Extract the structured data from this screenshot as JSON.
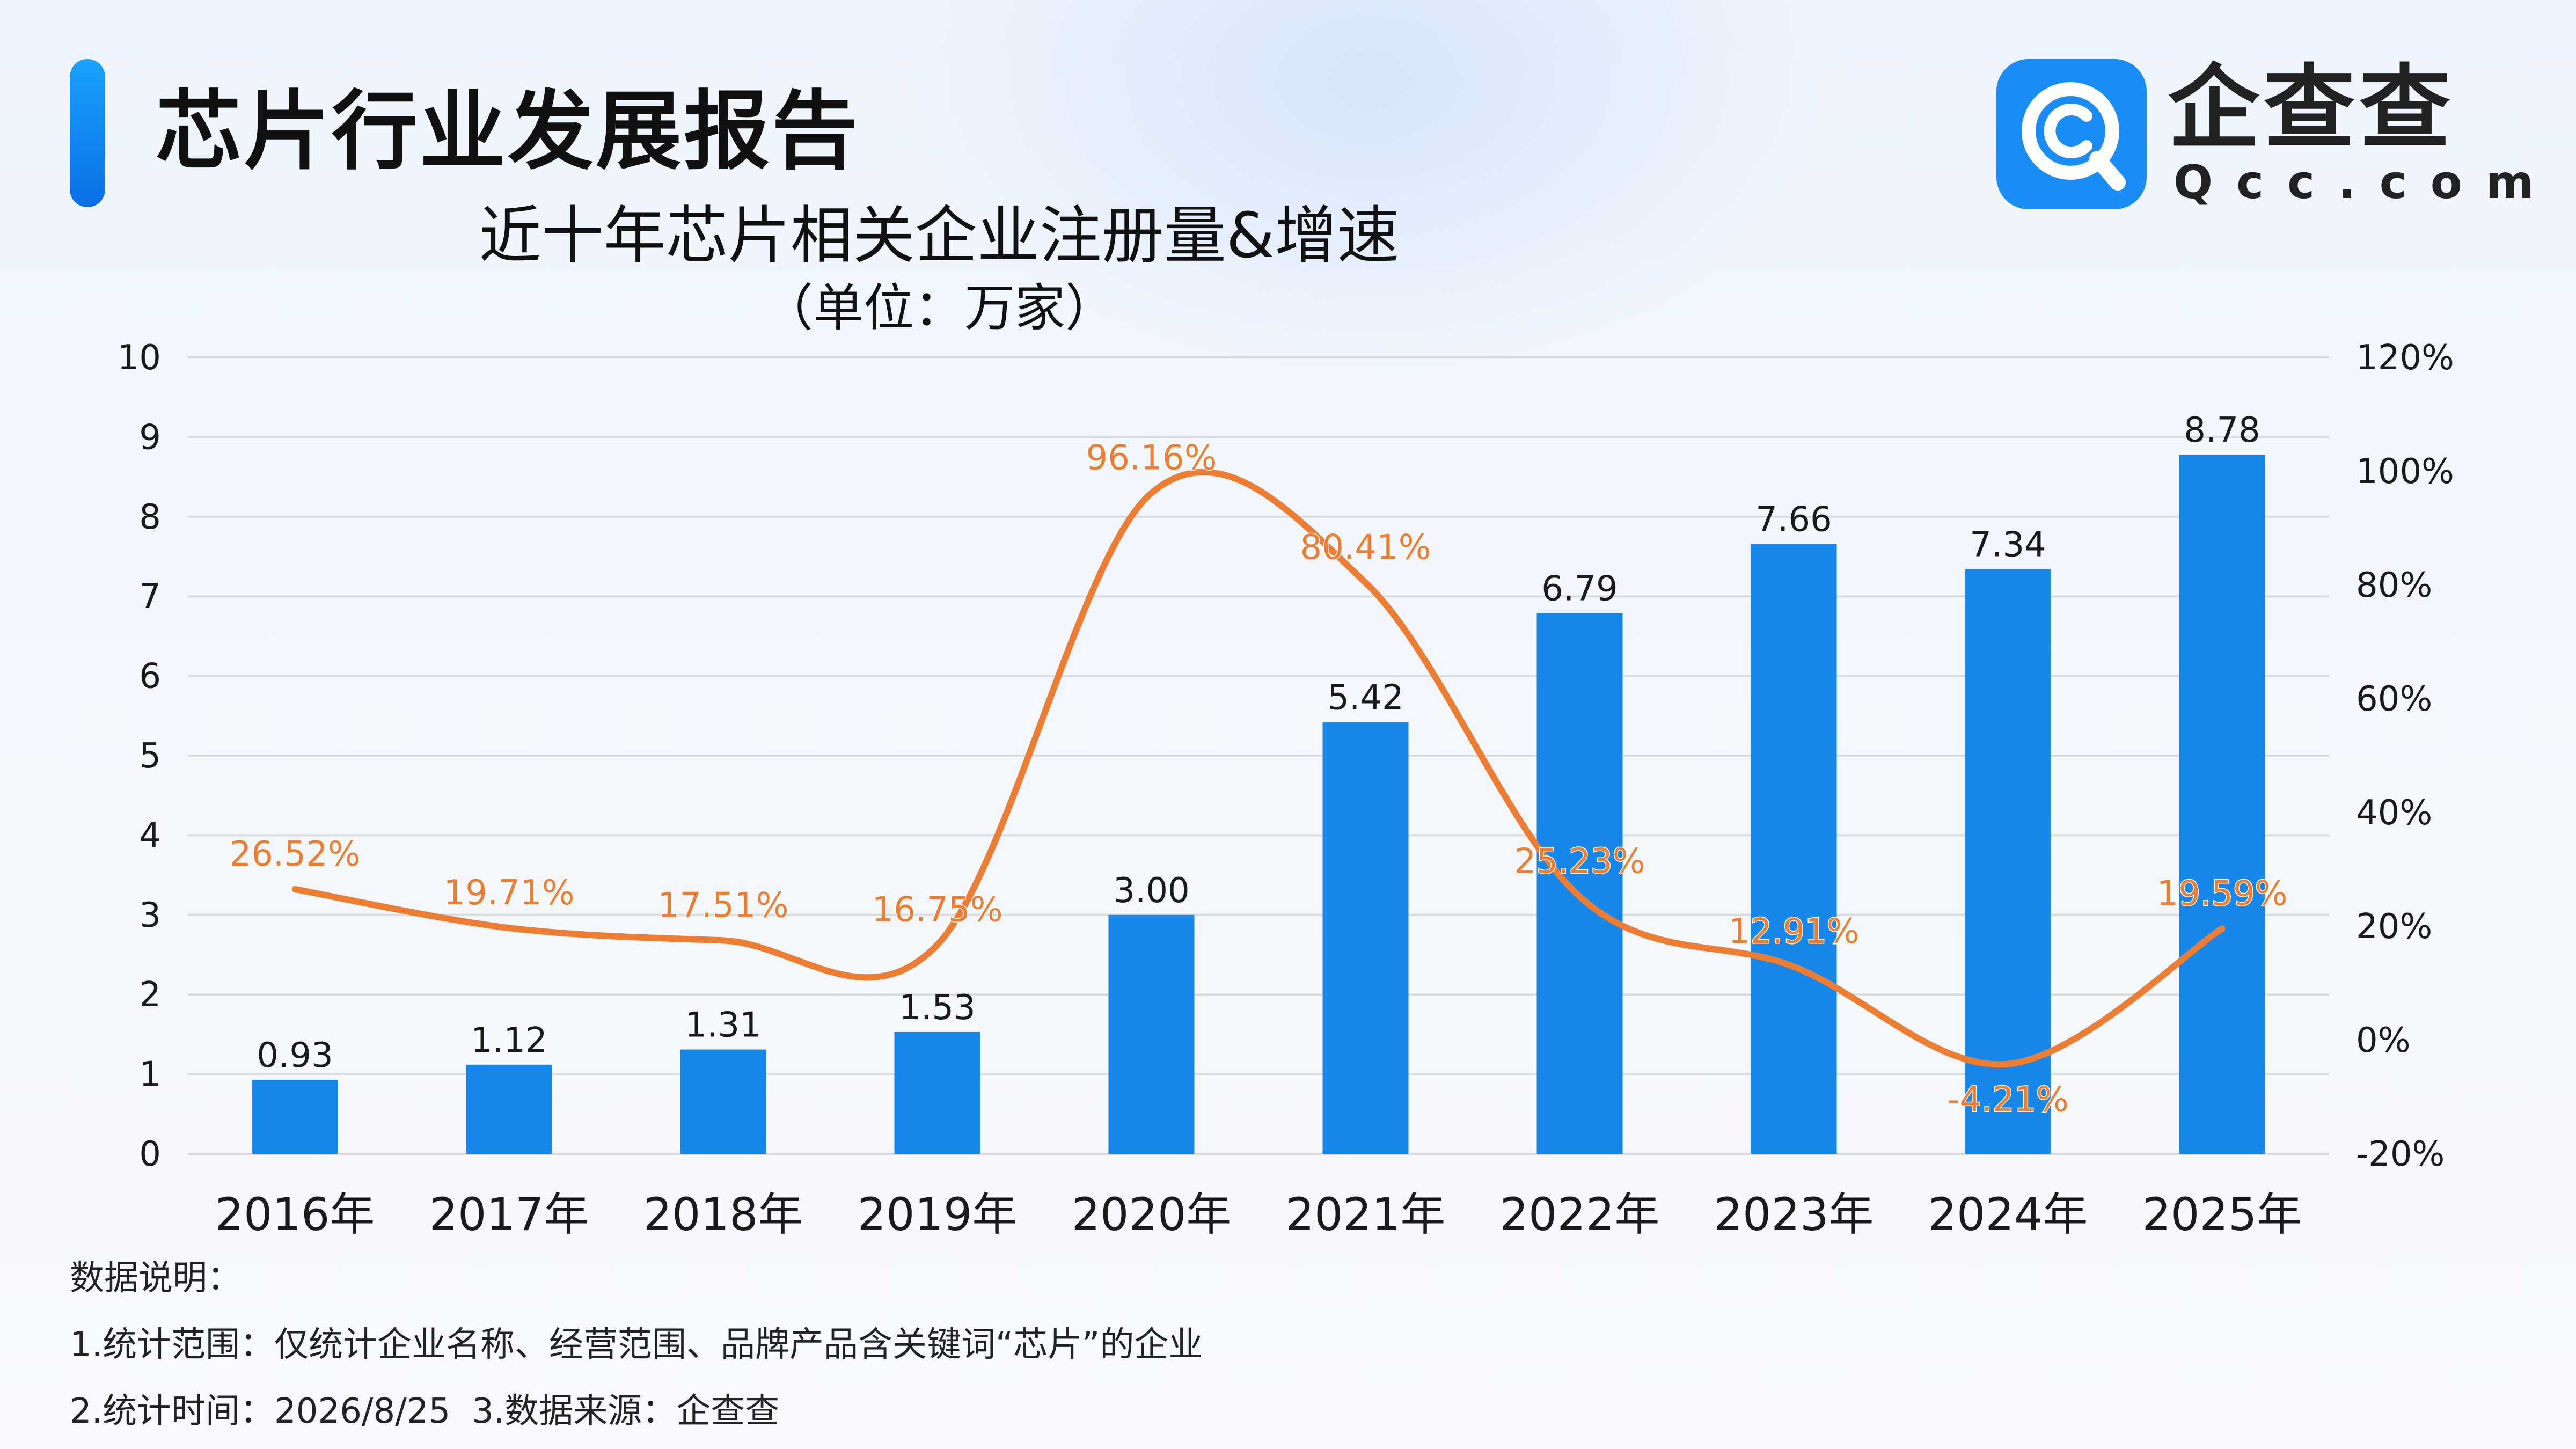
{
  "header": {
    "title": "芯片行业发展报告"
  },
  "logo": {
    "name": "企查查",
    "domain": "Qcc.com",
    "icon": "qcc-magnifier-icon",
    "color": "#1a8cf5"
  },
  "chart_titles": {
    "title": "近十年芯片相关企业注册量&增速",
    "subtitle": "（单位：万家）"
  },
  "colors": {
    "bar": "#1787ea",
    "line": "#ee7d34",
    "grid": "#d9dde3",
    "text": "#1a1a1a"
  },
  "chart_data": {
    "type": "bar+line",
    "title": "近十年芯片相关企业注册量&增速",
    "subtitle": "（单位：万家）",
    "categories": [
      "2016年",
      "2017年",
      "2018年",
      "2019年",
      "2020年",
      "2021年",
      "2022年",
      "2023年",
      "2024年",
      "2025年"
    ],
    "series": [
      {
        "type": "bar",
        "axis": "left",
        "values": [
          0.93,
          1.12,
          1.31,
          1.53,
          3.0,
          5.42,
          6.79,
          7.66,
          7.34,
          8.78
        ],
        "labels": [
          "0.93",
          "1.12",
          "1.31",
          "1.53",
          "3.00",
          "5.42",
          "6.79",
          "7.66",
          "7.34",
          "8.78"
        ]
      },
      {
        "type": "line",
        "axis": "right",
        "smooth": true,
        "values": [
          26.52,
          19.71,
          17.51,
          16.75,
          96.16,
          80.41,
          25.23,
          12.91,
          -4.21,
          19.59
        ],
        "labels": [
          "26.52%",
          "19.71%",
          "17.51%",
          "16.75%",
          "96.16%",
          "80.41%",
          "25.23%",
          "12.91%",
          "-4.21%",
          "19.59%"
        ]
      }
    ],
    "y_left": {
      "range": [
        0,
        10
      ],
      "ticks": [
        "0",
        "1",
        "2",
        "3",
        "4",
        "5",
        "6",
        "7",
        "8",
        "9",
        "10"
      ]
    },
    "y_right": {
      "range": [
        -20,
        120
      ],
      "ticks": [
        "-20%",
        "0%",
        "20%",
        "40%",
        "60%",
        "80%",
        "100%",
        "120%"
      ]
    },
    "grid": true
  },
  "notes": {
    "heading": "数据说明：",
    "line1": "1.统计范围：仅统计企业名称、经营范围、品牌产品含关键词“芯片”的企业",
    "line2a": "2.统计时间：2026/8/25",
    "line2b": "3.数据来源：企查查"
  }
}
